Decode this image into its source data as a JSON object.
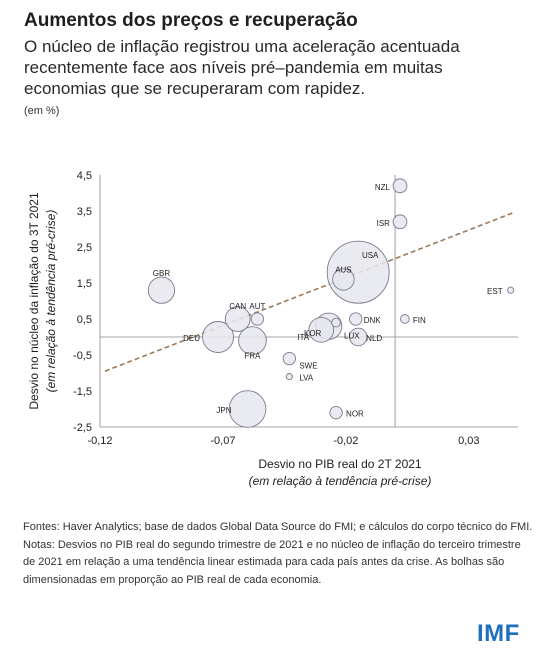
{
  "title": "Aumentos dos preços e recuperação",
  "subtitle": "O núcleo de inflação registrou uma aceleração acentuada recentemente face aos níveis pré–pandemia em muitas economias que se recuperaram com rapidez.",
  "unit": "(em %)",
  "footer": {
    "sources": "Fontes: Haver Analytics; base de dados Global Data Source do FMI; e cálculos do corpo técnico do FMI.",
    "notes": "Notas: Desvios no PIB real do segundo trimestre de 2021 e no núcleo de inflação do terceiro trimestre de 2021 em relação a uma tendência linear estimada para cada país antes da crise. As bolhas são dimensionadas em proporção ao PIB real de cada economia."
  },
  "logo": "IMF",
  "colors": {
    "bubble_fill": "#e6e6ef",
    "bubble_stroke": "#7b7b90",
    "trend_line": "#9b7b5b",
    "axis": "#888888",
    "logo": "#1f6fc0"
  },
  "chart_data": {
    "type": "scatter",
    "xlabel": "Desvio no PIB real do 2T 2021",
    "xlabel_sub": "(em relação à tendência pré-crise)",
    "ylabel": "Desvio no núcleo da inflação do 3T 2021",
    "ylabel_sub": "(em relação à tendência pré-crise)",
    "xlim": [
      -0.12,
      0.05
    ],
    "ylim": [
      -2.5,
      4.5
    ],
    "xticks": [
      -0.12,
      -0.07,
      -0.02,
      0.03
    ],
    "xtick_labels": [
      "-0,12",
      "-0,07",
      "-0,02",
      "0,03"
    ],
    "yticks": [
      4.5,
      3.5,
      2.5,
      1.5,
      0.5,
      -0.5,
      -1.5,
      -2.5
    ],
    "ytick_labels": [
      "4,5",
      "3,5",
      "2,5",
      "1,5",
      "0,5",
      "-0,5",
      "-1,5",
      "-2,5"
    ],
    "trend_line": {
      "x": [
        -0.118,
        0.048
      ],
      "y": [
        -0.95,
        3.45
      ]
    },
    "points": [
      {
        "label": "NZL",
        "x": 0.002,
        "y": 4.2,
        "size": 0.05
      },
      {
        "label": "ISR",
        "x": 0.002,
        "y": 3.2,
        "size": 0.05
      },
      {
        "label": "USA",
        "x": -0.015,
        "y": 1.8,
        "size": 1.0
      },
      {
        "label": "AUS",
        "x": -0.021,
        "y": 1.6,
        "size": 0.12
      },
      {
        "label": "EST",
        "x": 0.047,
        "y": 1.3,
        "size": 0.01
      },
      {
        "label": "GBR",
        "x": -0.095,
        "y": 1.3,
        "size": 0.18
      },
      {
        "label": "FIN",
        "x": 0.004,
        "y": 0.5,
        "size": 0.02
      },
      {
        "label": "DNK",
        "x": -0.016,
        "y": 0.5,
        "size": 0.04
      },
      {
        "label": "CAN",
        "x": -0.064,
        "y": 0.5,
        "size": 0.16
      },
      {
        "label": "AUT",
        "x": -0.056,
        "y": 0.5,
        "size": 0.04
      },
      {
        "label": "NLD",
        "x": -0.015,
        "y": 0.0,
        "size": 0.08
      },
      {
        "label": "DEU",
        "x": -0.072,
        "y": 0.0,
        "size": 0.25
      },
      {
        "label": "FRA",
        "x": -0.058,
        "y": -0.1,
        "size": 0.2
      },
      {
        "label": "ITA",
        "x": -0.03,
        "y": 0.2,
        "size": 0.16
      },
      {
        "label": "KOR",
        "x": -0.027,
        "y": 0.3,
        "size": 0.18
      },
      {
        "label": "LUX",
        "x": -0.024,
        "y": 0.4,
        "size": 0.02
      },
      {
        "label": "SWE",
        "x": -0.043,
        "y": -0.6,
        "size": 0.04
      },
      {
        "label": "LVA",
        "x": -0.043,
        "y": -1.1,
        "size": 0.01
      },
      {
        "label": "JPN",
        "x": -0.06,
        "y": -2.0,
        "size": 0.35
      },
      {
        "label": "NOR",
        "x": -0.024,
        "y": -2.1,
        "size": 0.04
      }
    ]
  }
}
